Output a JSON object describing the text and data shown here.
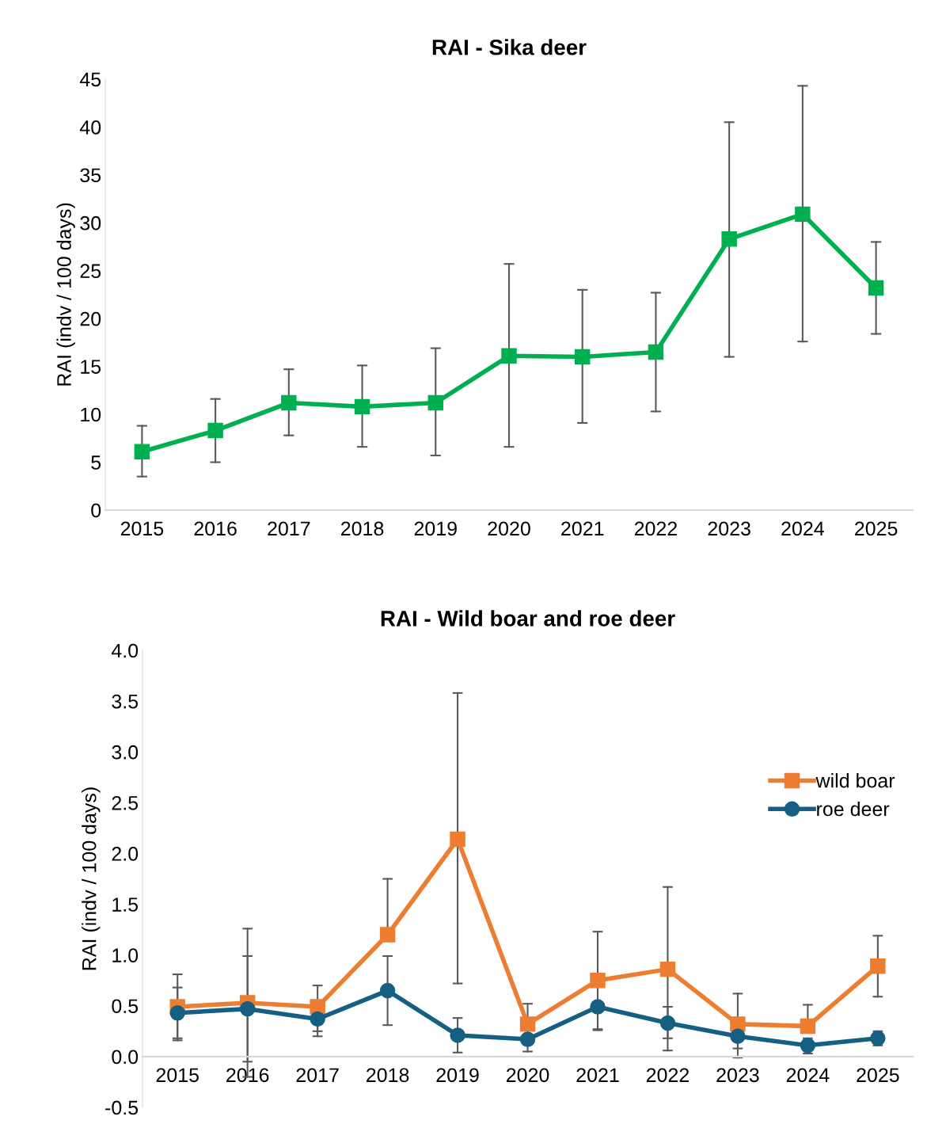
{
  "chart_data": [
    {
      "type": "line",
      "title": "RAI - Sika deer",
      "ylabel": "RAI (indv / 100 days)",
      "categories": [
        "2015",
        "2016",
        "2017",
        "2018",
        "2019",
        "2020",
        "2021",
        "2022",
        "2023",
        "2024",
        "2025"
      ],
      "series": [
        {
          "color": "#00b050",
          "values": [
            6.1,
            8.3,
            11.2,
            10.8,
            11.2,
            16.1,
            16.0,
            16.5,
            28.3,
            30.9,
            23.2
          ],
          "errors": [
            [
              3.5,
              8.8
            ],
            [
              5.0,
              11.6
            ],
            [
              7.8,
              14.7
            ],
            [
              6.6,
              15.1
            ],
            [
              5.7,
              16.9
            ],
            [
              6.6,
              25.7
            ],
            [
              9.1,
              23.0
            ],
            [
              10.3,
              22.7
            ],
            [
              16.0,
              40.5
            ],
            [
              17.6,
              44.3
            ],
            [
              18.4,
              28.0
            ]
          ]
        }
      ],
      "ylim": [
        0,
        45
      ],
      "yticks": [
        0,
        5,
        10,
        15,
        20,
        25,
        30,
        35,
        40,
        45
      ],
      "marker": "square",
      "line_style": "solid",
      "grid": false,
      "legend": false
    },
    {
      "type": "line",
      "title": "RAI - Wild boar and roe deer",
      "ylabel": "RAI (indv / 100 days)",
      "categories": [
        "2015",
        "2016",
        "2017",
        "2018",
        "2019",
        "2020",
        "2021",
        "2022",
        "2023",
        "2024",
        "2025"
      ],
      "series": [
        {
          "name": "wild boar",
          "color": "#ed7d31",
          "marker": "square",
          "values": [
            0.49,
            0.53,
            0.49,
            1.2,
            2.14,
            0.32,
            0.75,
            0.86,
            0.32,
            0.3,
            0.89
          ],
          "errors": [
            [
              0.16,
              0.81
            ],
            [
              -0.2,
              1.26
            ],
            [
              0.25,
              0.7
            ],
            [
              1.2,
              1.75
            ],
            [
              0.72,
              3.58
            ],
            [
              0.12,
              0.52
            ],
            [
              0.27,
              1.23
            ],
            [
              0.06,
              1.67
            ],
            [
              -0.01,
              0.62
            ],
            [
              0.3,
              0.51
            ],
            [
              0.59,
              1.19
            ]
          ]
        },
        {
          "name": "roe deer",
          "color": "#156082",
          "marker": "circle",
          "values": [
            0.43,
            0.47,
            0.37,
            0.65,
            0.21,
            0.17,
            0.49,
            0.33,
            0.2,
            0.11,
            0.18
          ],
          "errors": [
            [
              0.18,
              0.68
            ],
            [
              -0.05,
              0.99
            ],
            [
              0.2,
              0.37
            ],
            [
              0.31,
              0.99
            ],
            [
              0.04,
              0.38
            ],
            [
              0.05,
              0.17
            ],
            [
              0.26,
              0.49
            ],
            [
              0.18,
              0.49
            ],
            [
              0.08,
              0.2
            ],
            [
              0.03,
              0.18
            ],
            [
              0.11,
              0.25
            ]
          ]
        }
      ],
      "ylim": [
        -0.5,
        4.0
      ],
      "yticks": [
        {
          "value": -0.5,
          "label": "-0.5"
        },
        {
          "value": 0,
          "label": "0.0"
        },
        {
          "value": 0.5,
          "label": "0.5"
        },
        {
          "value": 1.0,
          "label": "1.0"
        },
        {
          "value": 1.5,
          "label": "1.5"
        },
        {
          "value": 2.0,
          "label": "2.0"
        },
        {
          "value": 2.5,
          "label": "2.5"
        },
        {
          "value": 3.0,
          "label": "3.0"
        },
        {
          "value": 3.5,
          "label": "3.5"
        },
        {
          "value": 4.0,
          "label": "4.0"
        }
      ],
      "line_style": "solid",
      "grid": false,
      "legend": "right"
    }
  ]
}
